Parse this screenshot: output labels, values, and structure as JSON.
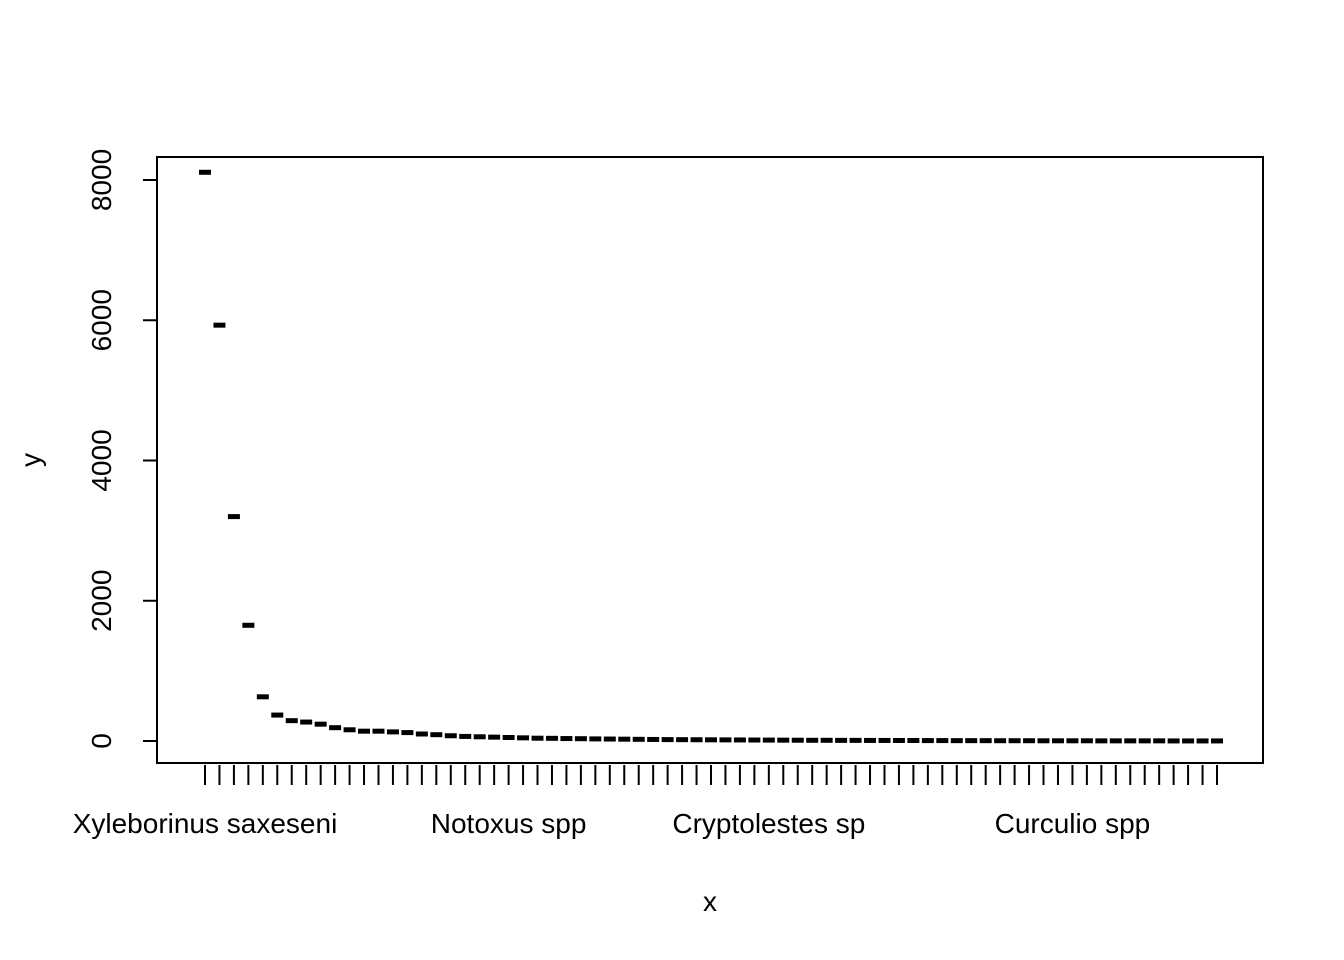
{
  "chart_data": {
    "type": "box",
    "xlabel": "x",
    "ylabel": "y",
    "ylim": [
      0,
      8000
    ],
    "y_ticks": [
      0,
      2000,
      4000,
      6000,
      8000
    ],
    "x_tick_labels_shown": [
      "Xyleborinus saxeseni",
      "Notoxus spp",
      "Cryptolestes sp",
      "Curculio spp"
    ],
    "x_tick_label_positions": [
      1,
      22,
      40,
      61
    ],
    "n_categories": 71,
    "values": [
      8110,
      5930,
      3200,
      1650,
      630,
      370,
      290,
      270,
      240,
      190,
      160,
      140,
      140,
      130,
      120,
      100,
      90,
      75,
      65,
      60,
      55,
      50,
      45,
      40,
      38,
      35,
      33,
      30,
      28,
      26,
      24,
      22,
      20,
      19,
      18,
      17,
      16,
      15,
      14,
      13,
      12,
      11,
      10,
      10,
      9,
      9,
      8,
      8,
      7,
      7,
      6,
      6,
      5,
      5,
      5,
      4,
      4,
      4,
      3,
      3,
      3,
      3,
      2,
      2,
      2,
      2,
      2,
      1,
      1,
      1,
      1
    ],
    "grid": false,
    "legend": "none"
  }
}
